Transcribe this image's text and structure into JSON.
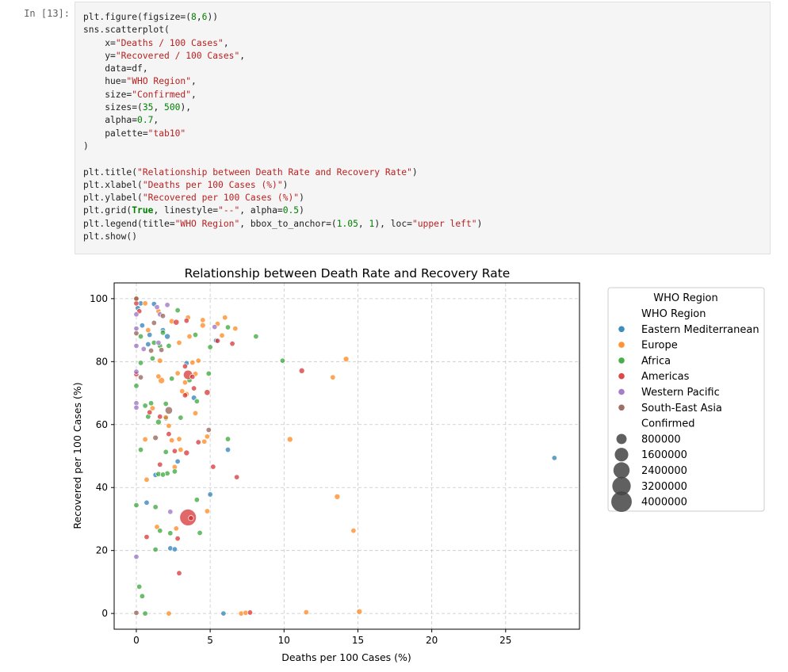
{
  "cell": {
    "prompt": "In [13]:",
    "code_lines": [
      [
        [
          "plt.figure(figsize=(",
          "t"
        ],
        [
          "8",
          "n"
        ],
        [
          ",",
          "t"
        ],
        [
          "6",
          "n"
        ],
        [
          "))",
          "t"
        ]
      ],
      [
        [
          "sns.scatterplot(",
          "t"
        ]
      ],
      [
        [
          "    x=",
          "t"
        ],
        [
          "\"Deaths / 100 Cases\"",
          "s"
        ],
        [
          ",",
          "t"
        ]
      ],
      [
        [
          "    y=",
          "t"
        ],
        [
          "\"Recovered / 100 Cases\"",
          "s"
        ],
        [
          ",",
          "t"
        ]
      ],
      [
        [
          "    data=df,",
          "t"
        ]
      ],
      [
        [
          "    hue=",
          "t"
        ],
        [
          "\"WHO Region\"",
          "s"
        ],
        [
          ",",
          "t"
        ]
      ],
      [
        [
          "    size=",
          "t"
        ],
        [
          "\"Confirmed\"",
          "s"
        ],
        [
          ",",
          "t"
        ]
      ],
      [
        [
          "    sizes=(",
          "t"
        ],
        [
          "35",
          "n"
        ],
        [
          ", ",
          "t"
        ],
        [
          "500",
          "n"
        ],
        [
          "),",
          "t"
        ]
      ],
      [
        [
          "    alpha=",
          "t"
        ],
        [
          "0.7",
          "n"
        ],
        [
          ",",
          "t"
        ]
      ],
      [
        [
          "    palette=",
          "t"
        ],
        [
          "\"tab10\"",
          "s"
        ]
      ],
      [
        [
          ")",
          "t"
        ]
      ],
      [
        [
          "",
          "t"
        ]
      ],
      [
        [
          "plt.title(",
          "t"
        ],
        [
          "\"Relationship between Death Rate and Recovery Rate\"",
          "s"
        ],
        [
          ")",
          "t"
        ]
      ],
      [
        [
          "plt.xlabel(",
          "t"
        ],
        [
          "\"Deaths per 100 Cases (%)\"",
          "s"
        ],
        [
          ")",
          "t"
        ]
      ],
      [
        [
          "plt.ylabel(",
          "t"
        ],
        [
          "\"Recovered per 100 Cases (%)\"",
          "s"
        ],
        [
          ")",
          "t"
        ]
      ],
      [
        [
          "plt.grid(",
          "t"
        ],
        [
          "True",
          "k"
        ],
        [
          ", linestyle=",
          "t"
        ],
        [
          "\"--\"",
          "s"
        ],
        [
          ", alpha=",
          "t"
        ],
        [
          "0.5",
          "n"
        ],
        [
          ")",
          "t"
        ]
      ],
      [
        [
          "plt.legend(title=",
          "t"
        ],
        [
          "\"WHO Region\"",
          "s"
        ],
        [
          ", bbox_to_anchor=(",
          "t"
        ],
        [
          "1.05",
          "n"
        ],
        [
          ", ",
          "t"
        ],
        [
          "1",
          "n"
        ],
        [
          "), loc=",
          "t"
        ],
        [
          "\"upper left\"",
          "s"
        ],
        [
          ")",
          "t"
        ]
      ],
      [
        [
          "plt.show()",
          "t"
        ]
      ]
    ]
  },
  "chart_data": {
    "type": "scatter",
    "title": "Relationship between Death Rate and Recovery Rate",
    "xlabel": "Deaths per 100 Cases (%)",
    "ylabel": "Recovered per 100 Cases (%)",
    "xlim": [
      -1.5,
      30
    ],
    "ylim": [
      -5,
      105
    ],
    "xticks": [
      0,
      5,
      10,
      15,
      20,
      25
    ],
    "yticks": [
      0,
      20,
      40,
      60,
      80,
      100
    ],
    "grid": true,
    "legend_placement": "outside upper left",
    "legend_title": "WHO Region",
    "hue_title": "WHO Region",
    "size_title": "Confirmed",
    "alpha": 0.7,
    "size_legend": [
      800000,
      1600000,
      2400000,
      3200000,
      4000000
    ],
    "series": [
      {
        "name": "Eastern Mediterranean",
        "color": "#1f77b4",
        "points": [
          [
            0.1,
            97,
            1000
          ],
          [
            0.3,
            98.5,
            1000
          ],
          [
            1.2,
            98.3,
            5000
          ],
          [
            0.4,
            91.5,
            5000
          ],
          [
            1.8,
            90,
            1000
          ],
          [
            2.1,
            88,
            60000
          ],
          [
            0.9,
            88.5,
            5000
          ],
          [
            5.4,
            86.7,
            15000
          ],
          [
            3.4,
            79.5,
            5000
          ],
          [
            3.9,
            68.5,
            20000
          ],
          [
            2.0,
            62,
            5000
          ],
          [
            2.8,
            48.3,
            5000
          ],
          [
            6.2,
            52,
            5000
          ],
          [
            5.0,
            37.8,
            5000
          ],
          [
            0.7,
            35.2,
            1000
          ],
          [
            1.3,
            44,
            5000
          ],
          [
            2.3,
            20.7,
            1000
          ],
          [
            2.6,
            20.4,
            1000
          ],
          [
            28.3,
            49.4,
            1000
          ],
          [
            5.9,
            0,
            1000
          ],
          [
            0.8,
            85.5,
            5000
          ]
        ]
      },
      {
        "name": "Europe",
        "color": "#ff7f0e",
        "points": [
          [
            0.0,
            100,
            1000
          ],
          [
            0.6,
            98.5,
            1000
          ],
          [
            1.5,
            96,
            5000
          ],
          [
            0.8,
            90,
            5000
          ],
          [
            2.4,
            92.8,
            30000
          ],
          [
            3.5,
            94,
            5000
          ],
          [
            4.5,
            93.2,
            5000
          ],
          [
            4.5,
            91.5,
            30000
          ],
          [
            5.5,
            92,
            5000
          ],
          [
            6.0,
            94,
            5000
          ],
          [
            6.7,
            90.5,
            5000
          ],
          [
            5.8,
            88.3,
            5000
          ],
          [
            2.9,
            86,
            5000
          ],
          [
            3.6,
            88,
            5000
          ],
          [
            1.6,
            80.3,
            30000
          ],
          [
            1.5,
            75.3,
            5000
          ],
          [
            1.7,
            74,
            150000
          ],
          [
            2.8,
            76.3,
            5000
          ],
          [
            3.3,
            73.4,
            5000
          ],
          [
            3.8,
            79.7,
            5000
          ],
          [
            4.0,
            76.1,
            5000
          ],
          [
            4.2,
            80.3,
            5000
          ],
          [
            3.1,
            70.6,
            5000
          ],
          [
            3.4,
            69.7,
            5000
          ],
          [
            1.1,
            65.2,
            5000
          ],
          [
            2.0,
            62.3,
            5000
          ],
          [
            2.2,
            59.6,
            5000
          ],
          [
            2.4,
            55,
            5000
          ],
          [
            2.9,
            55.4,
            5000
          ],
          [
            4.8,
            56.2,
            5000
          ],
          [
            4.6,
            54.6,
            5000
          ],
          [
            4.0,
            63.6,
            5000
          ],
          [
            0.6,
            55.3,
            5000
          ],
          [
            2.6,
            46.5,
            5000
          ],
          [
            3.0,
            52,
            5000
          ],
          [
            0.7,
            42.5,
            5000
          ],
          [
            1.4,
            27.5,
            5000
          ],
          [
            2.7,
            27,
            5000
          ],
          [
            4.8,
            32.5,
            5000
          ],
          [
            14.2,
            80.8,
            50000
          ],
          [
            13.3,
            75,
            5000
          ],
          [
            10.4,
            55.3,
            60000
          ],
          [
            13.6,
            37.1,
            50000
          ],
          [
            14.7,
            26.3,
            5000
          ],
          [
            11.5,
            0.4,
            5000
          ],
          [
            15.1,
            0.6,
            50000
          ],
          [
            7.1,
            0,
            5000
          ],
          [
            2.2,
            0,
            5000
          ],
          [
            7.4,
            0.2,
            5000
          ]
        ]
      },
      {
        "name": "Africa",
        "color": "#2ca02c",
        "points": [
          [
            2.8,
            96.3,
            5000
          ],
          [
            4.0,
            88.5,
            5000
          ],
          [
            0.3,
            88,
            5000
          ],
          [
            1.2,
            86,
            5000
          ],
          [
            1.6,
            85,
            5000
          ],
          [
            2.2,
            85,
            5000
          ],
          [
            1.8,
            89.2,
            5000
          ],
          [
            6.2,
            90.9,
            5000
          ],
          [
            8.1,
            88,
            5000
          ],
          [
            5.0,
            84.6,
            5000
          ],
          [
            0.3,
            79.6,
            5000
          ],
          [
            1.1,
            81,
            5000
          ],
          [
            4.9,
            76.2,
            5000
          ],
          [
            9.9,
            80.3,
            5000
          ],
          [
            0.0,
            72.3,
            5000
          ],
          [
            0.6,
            66,
            5000
          ],
          [
            0.8,
            62.5,
            5000
          ],
          [
            1.0,
            66.8,
            5000
          ],
          [
            1.5,
            60.8,
            60000
          ],
          [
            2.4,
            74.6,
            5000
          ],
          [
            3.0,
            62.2,
            5000
          ],
          [
            3.6,
            74.1,
            5000
          ],
          [
            4.1,
            67.4,
            5000
          ],
          [
            0.3,
            52,
            5000
          ],
          [
            2.0,
            51.3,
            5000
          ],
          [
            2.1,
            44.5,
            5000
          ],
          [
            1.5,
            44.3,
            5000
          ],
          [
            1.8,
            44.1,
            5000
          ],
          [
            2.6,
            45.1,
            5000
          ],
          [
            6.2,
            55.4,
            5000
          ],
          [
            0.0,
            34.4,
            5000
          ],
          [
            1.3,
            33.8,
            5000
          ],
          [
            4.1,
            36.1,
            5000
          ],
          [
            4.3,
            25.6,
            5000
          ],
          [
            1.6,
            26.3,
            5000
          ],
          [
            2.3,
            25.5,
            5000
          ],
          [
            1.3,
            20.3,
            5000
          ],
          [
            0.2,
            8.5,
            5000
          ],
          [
            0.4,
            5.5,
            5000
          ],
          [
            0.6,
            0,
            5000
          ],
          [
            2.0,
            66.6,
            5000
          ]
        ]
      },
      {
        "name": "Americas",
        "color": "#d62728",
        "points": [
          [
            0.0,
            98.5,
            1000
          ],
          [
            0.2,
            96,
            1000
          ],
          [
            2.7,
            92.5,
            80000
          ],
          [
            3.4,
            93,
            5000
          ],
          [
            5.5,
            86.6,
            5000
          ],
          [
            6.5,
            85.7,
            5000
          ],
          [
            3.5,
            75.8,
            600000
          ],
          [
            3.3,
            78.5,
            5000
          ],
          [
            3.8,
            75.2,
            5000
          ],
          [
            4.8,
            70.2,
            80000
          ],
          [
            3.3,
            69.3,
            5000
          ],
          [
            3.9,
            71.5,
            5000
          ],
          [
            11.2,
            77.1,
            50000
          ],
          [
            0.0,
            76,
            5000
          ],
          [
            0.9,
            63.9,
            5000
          ],
          [
            1.6,
            62.5,
            5000
          ],
          [
            2.2,
            57,
            5000
          ],
          [
            3.4,
            51,
            60000
          ],
          [
            4.2,
            54.4,
            5000
          ],
          [
            5.2,
            46.6,
            5000
          ],
          [
            6.8,
            43.3,
            5000
          ],
          [
            1.6,
            47.3,
            5000
          ],
          [
            2.6,
            51.6,
            5000
          ],
          [
            3.5,
            30.5,
            2500000
          ],
          [
            3.7,
            30.3,
            5000
          ],
          [
            2.8,
            23.8,
            5000
          ],
          [
            0.7,
            24.3,
            5000
          ],
          [
            2.9,
            12.8,
            5000
          ],
          [
            7.7,
            0.3,
            5000
          ]
        ]
      },
      {
        "name": "Western Pacific",
        "color": "#9467bd",
        "points": [
          [
            1.4,
            97.3,
            1000
          ],
          [
            2.1,
            98,
            1000
          ],
          [
            1.6,
            95,
            1000
          ],
          [
            0.0,
            95,
            1000
          ],
          [
            0.0,
            90.5,
            1000
          ],
          [
            0.0,
            85,
            1000
          ],
          [
            1.5,
            86,
            1000
          ],
          [
            0.5,
            84,
            1000
          ],
          [
            5.3,
            91,
            5000
          ],
          [
            0.0,
            76.8,
            5000
          ],
          [
            0.0,
            66.8,
            1000
          ],
          [
            0.0,
            65.4,
            1000
          ],
          [
            0.0,
            18,
            1000
          ],
          [
            2.3,
            32.3,
            5000
          ]
        ]
      },
      {
        "name": "South-East Asia",
        "color": "#8c564b",
        "points": [
          [
            0.0,
            100,
            1000
          ],
          [
            1.8,
            94.5,
            5000
          ],
          [
            1.2,
            92.3,
            5000
          ],
          [
            0.0,
            89,
            1000
          ],
          [
            1.0,
            83.5,
            5000
          ],
          [
            1.7,
            83.7,
            5000
          ],
          [
            2.2,
            64.5,
            300000
          ],
          [
            1.3,
            55.8,
            40000
          ],
          [
            4.9,
            58.3,
            5000
          ],
          [
            0.3,
            75,
            5000
          ],
          [
            0.0,
            0.2,
            1000
          ]
        ]
      }
    ]
  }
}
